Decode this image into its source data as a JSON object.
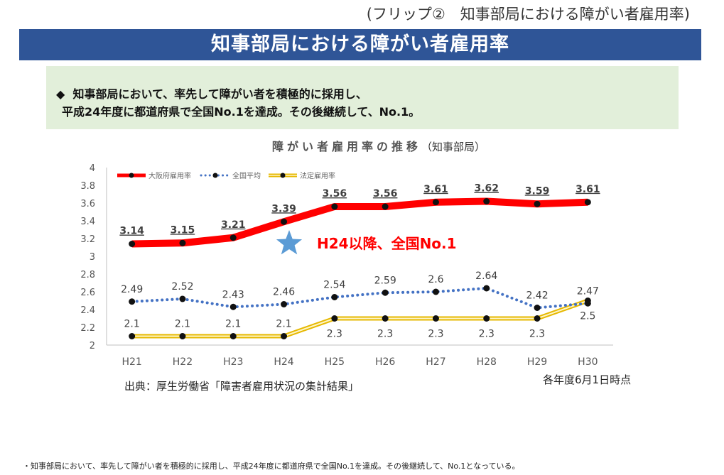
{
  "flip_caption": "(フリップ②　知事部局における障がい者雇用率)",
  "banner_title": "知事部局における障がい者雇用率",
  "summary": {
    "bullet": "◆",
    "line1": "知事部局において、率先して障がい者を積極的に採用し、",
    "line2": "平成24年度に都道府県で全国No.1を達成。その後継続して、No.1。"
  },
  "chart_title": "障がい者雇用率の推移",
  "chart_subtitle": "（知事部局）",
  "source": "出典：厚生労働省「障害者雇用状況の集計結果」",
  "as_of": "各年度6月1日時点",
  "footnote": "・知事部局において、率先して障がい者を積極的に採用し、平成24年度に都道府県で全国No.1を達成。その後継続して、No.1となっている。",
  "colors": {
    "banner": "#2f5597",
    "summary_bg": "#e2efda",
    "osaka": "#ff0000",
    "national": "#4472c4",
    "legal": "#ffd966",
    "annotation": "#ff0000",
    "star": "#5b9bd5"
  },
  "chart_data": {
    "type": "line",
    "categories": [
      "H21",
      "H22",
      "H23",
      "H24",
      "H25",
      "H26",
      "H27",
      "H28",
      "H29",
      "H30"
    ],
    "ylim": [
      2,
      4
    ],
    "yticks": [
      "4",
      "3.8",
      "3.6",
      "3.4",
      "3.2",
      "3",
      "2.8",
      "2.6",
      "2.4",
      "2.2",
      "2"
    ],
    "legend_position": "top-left",
    "series": [
      {
        "name": "大阪府雇用率",
        "values": [
          3.14,
          3.15,
          3.21,
          3.39,
          3.56,
          3.56,
          3.61,
          3.62,
          3.59,
          3.61
        ],
        "labels": [
          "3.14",
          "3.15",
          "3.21",
          "3.39",
          "3.56",
          "3.56",
          "3.61",
          "3.62",
          "3.59",
          "3.61"
        ]
      },
      {
        "name": "全国平均",
        "values": [
          2.49,
          2.52,
          2.43,
          2.46,
          2.54,
          2.59,
          2.6,
          2.64,
          2.42,
          2.47
        ],
        "labels": [
          "2.49",
          "2.52",
          "2.43",
          "2.46",
          "2.54",
          "2.59",
          "2.6",
          "2.64",
          "2.42",
          "2.47"
        ]
      },
      {
        "name": "法定雇用率",
        "values": [
          2.1,
          2.1,
          2.1,
          2.1,
          2.3,
          2.3,
          2.3,
          2.3,
          2.3,
          2.5
        ],
        "labels": [
          "2.1",
          "2.1",
          "2.1",
          "2.1",
          "2.3",
          "2.3",
          "2.3",
          "2.3",
          "2.3",
          "2.5"
        ]
      }
    ],
    "annotation": "H24以降、全国No.1"
  }
}
